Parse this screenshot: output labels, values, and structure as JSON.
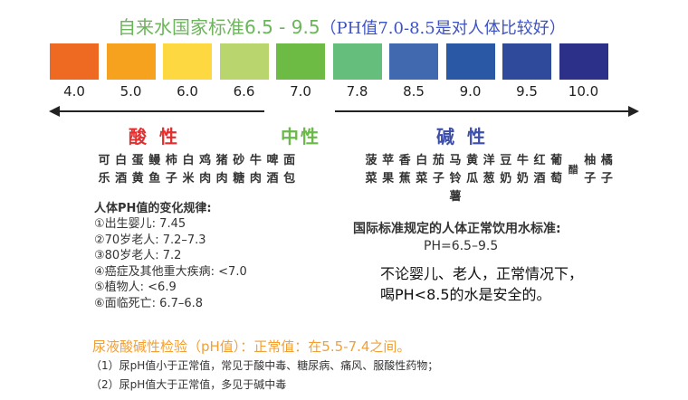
{
  "title": {
    "green": "自来水国家标准6.5 - 9.5",
    "blue": "（PH值7.0-8.5是对人体比较好）"
  },
  "scale": [
    {
      "ph": "4.0",
      "color": "#ee6a23"
    },
    {
      "ph": "5.0",
      "color": "#f7a21e"
    },
    {
      "ph": "6.0",
      "color": "#fdd840"
    },
    {
      "ph": "6.6",
      "color": "#b9d66e"
    },
    {
      "ph": "7.0",
      "color": "#6dbb45"
    },
    {
      "ph": "7.8",
      "color": "#66be7d"
    },
    {
      "ph": "8.5",
      "color": "#4169b0"
    },
    {
      "ph": "9.0",
      "color": "#2a58a4"
    },
    {
      "ph": "9.5",
      "color": "#2f4a9b"
    },
    {
      "ph": "10.0",
      "color": "#2c3089"
    }
  ],
  "acid": {
    "label": "酸性",
    "color": "#e52d2d"
  },
  "neutral": {
    "label": "中性",
    "color": "#6bb84a"
  },
  "alkaline": {
    "label": "碱性",
    "color": "#3d4fa8"
  },
  "acid_foods": [
    "可乐",
    "白酒",
    "蛋黄",
    "鳗鱼",
    "柿子",
    "白米",
    "鸡肉",
    "猪肉",
    "砂糖",
    "牛肉",
    "啤酒",
    "面包"
  ],
  "alkaline_foods": [
    "菠菜",
    "苹果",
    "香蕉",
    "白菜",
    "茄子",
    "马铃薯",
    "黄瓜",
    "洋葱",
    "豆奶",
    "牛奶",
    "红酒",
    "葡萄",
    "醋",
    "柚子",
    "橘子"
  ],
  "body_ph": {
    "heading": "人体PH值的变化规律:",
    "items": [
      "①出生婴儿: 7.45",
      "②70岁老人: 7.2–7.3",
      "③80岁老人: 7.2",
      "④癌症及其他重大疾病: <7.0",
      "⑤植物人: <6.9",
      "⑥面临死亡: 6.7–6.8"
    ]
  },
  "intl": {
    "line1": "国际标准规定的人体正常饮用水标准:",
    "line2": "PH=6.5–9.5"
  },
  "safe": {
    "line1": "不论婴儿、老人，正常情况下，",
    "line2": "喝PH<8.5的水是安全的。"
  },
  "urine": {
    "heading": "尿液酸碱性检验（pH值）：正常值：在5.5-7.4之间。",
    "item1": "（1）尿pH值小于正常值，常见于酸中毒、糖尿病、痛风、服酸性药物；",
    "item2": "（2）尿pH值大于正常值，多见于碱中毒"
  }
}
